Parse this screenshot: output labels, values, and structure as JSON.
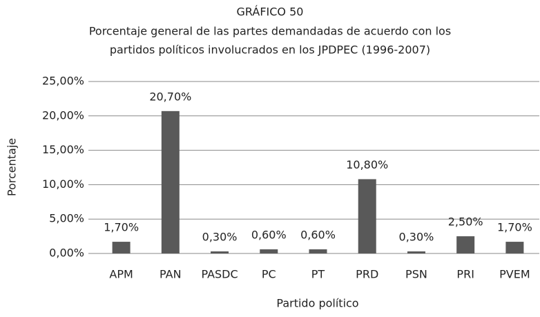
{
  "chart_data": {
    "type": "bar",
    "title": "GRÁFICO 50",
    "subtitle": [
      "Porcentaje general de las partes demandadas de acuerdo con los",
      "partidos políticos involucrados en los JPDPEC (1996-2007)"
    ],
    "x_label": "Partido político",
    "y_label": "Porcentaje",
    "categories": [
      "APM",
      "PAN",
      "PASDC",
      "PC",
      "PT",
      "PRD",
      "PSN",
      "PRI",
      "PVEM"
    ],
    "values": [
      1.7,
      20.7,
      0.3,
      0.6,
      0.6,
      10.8,
      0.3,
      2.5,
      1.7
    ],
    "value_labels": [
      "1,70%",
      "20,70%",
      "0,30%",
      "0,60%",
      "0,60%",
      "10,80%",
      "0,30%",
      "2,50%",
      "1,70%"
    ],
    "color": "#595959",
    "ylim": [
      0,
      25
    ],
    "yticks": [
      {
        "value": 0,
        "label": "0,00%"
      },
      {
        "value": 5,
        "label": "5,00%"
      },
      {
        "value": 10,
        "label": "10,00%"
      },
      {
        "value": 15,
        "label": "15,00%"
      },
      {
        "value": 20,
        "label": "20,00%"
      },
      {
        "value": 25,
        "label": "25,00%"
      }
    ],
    "grid": true
  }
}
